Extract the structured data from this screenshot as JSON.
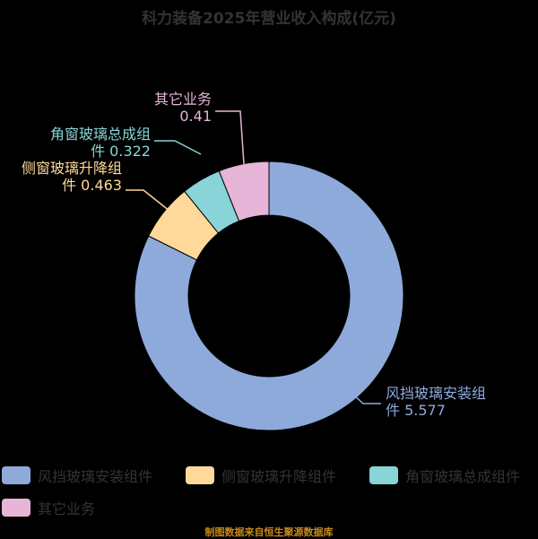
{
  "chart_data": {
    "type": "pie",
    "title": "科力装备2025年营业收入构成(亿元)",
    "donut": true,
    "legend_position": "bottom",
    "slices": [
      {
        "name": "风挡玻璃安装组件",
        "label_lines": [
          "风挡玻璃安装组",
          "件 5.577"
        ],
        "value": 5.577,
        "color": "#8eaadb"
      },
      {
        "name": "侧窗玻璃升降组件",
        "label_lines": [
          "侧窗玻璃升降组",
          "件 0.463"
        ],
        "value": 0.463,
        "color": "#ffd99a"
      },
      {
        "name": "角窗玻璃总成组件",
        "label_lines": [
          "角窗玻璃总成组",
          "件 0.322"
        ],
        "value": 0.322,
        "color": "#88d4d8"
      },
      {
        "name": "其它业务",
        "label_lines": [
          "其它业务",
          "0.41"
        ],
        "value": 0.41,
        "color": "#e6b5d8"
      }
    ]
  },
  "source": "制图数据来自恒生聚源数据库"
}
